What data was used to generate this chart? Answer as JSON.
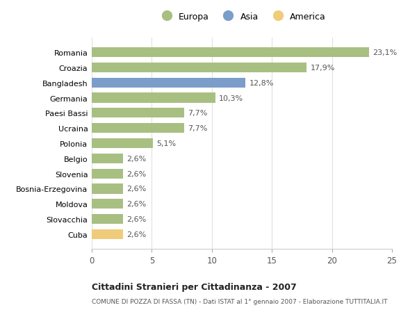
{
  "categories": [
    "Cuba",
    "Slovacchia",
    "Moldova",
    "Bosnia-Erzegovina",
    "Slovenia",
    "Belgio",
    "Polonia",
    "Ucraina",
    "Paesi Bassi",
    "Germania",
    "Bangladesh",
    "Croazia",
    "Romania"
  ],
  "values": [
    2.6,
    2.6,
    2.6,
    2.6,
    2.6,
    2.6,
    5.1,
    7.7,
    7.7,
    10.3,
    12.8,
    17.9,
    23.1
  ],
  "labels": [
    "2,6%",
    "2,6%",
    "2,6%",
    "2,6%",
    "2,6%",
    "2,6%",
    "5,1%",
    "7,7%",
    "7,7%",
    "10,3%",
    "12,8%",
    "17,9%",
    "23,1%"
  ],
  "colors": [
    "#f0cc7a",
    "#a8bf82",
    "#a8bf82",
    "#a8bf82",
    "#a8bf82",
    "#a8bf82",
    "#a8bf82",
    "#a8bf82",
    "#a8bf82",
    "#a8bf82",
    "#7b9dc9",
    "#a8bf82",
    "#a8bf82"
  ],
  "legend": [
    {
      "label": "Europa",
      "color": "#a8bf82"
    },
    {
      "label": "Asia",
      "color": "#7b9dc9"
    },
    {
      "label": "America",
      "color": "#f0cc7a"
    }
  ],
  "title1": "Cittadini Stranieri per Cittadinanza - 2007",
  "title2": "COMUNE DI POZZA DI FASSA (TN) - Dati ISTAT al 1° gennaio 2007 - Elaborazione TUTTITALIA.IT",
  "xlim": [
    0,
    25
  ],
  "xticks": [
    0,
    5,
    10,
    15,
    20,
    25
  ],
  "background_color": "#ffffff",
  "grid_color": "#e0e0e0"
}
